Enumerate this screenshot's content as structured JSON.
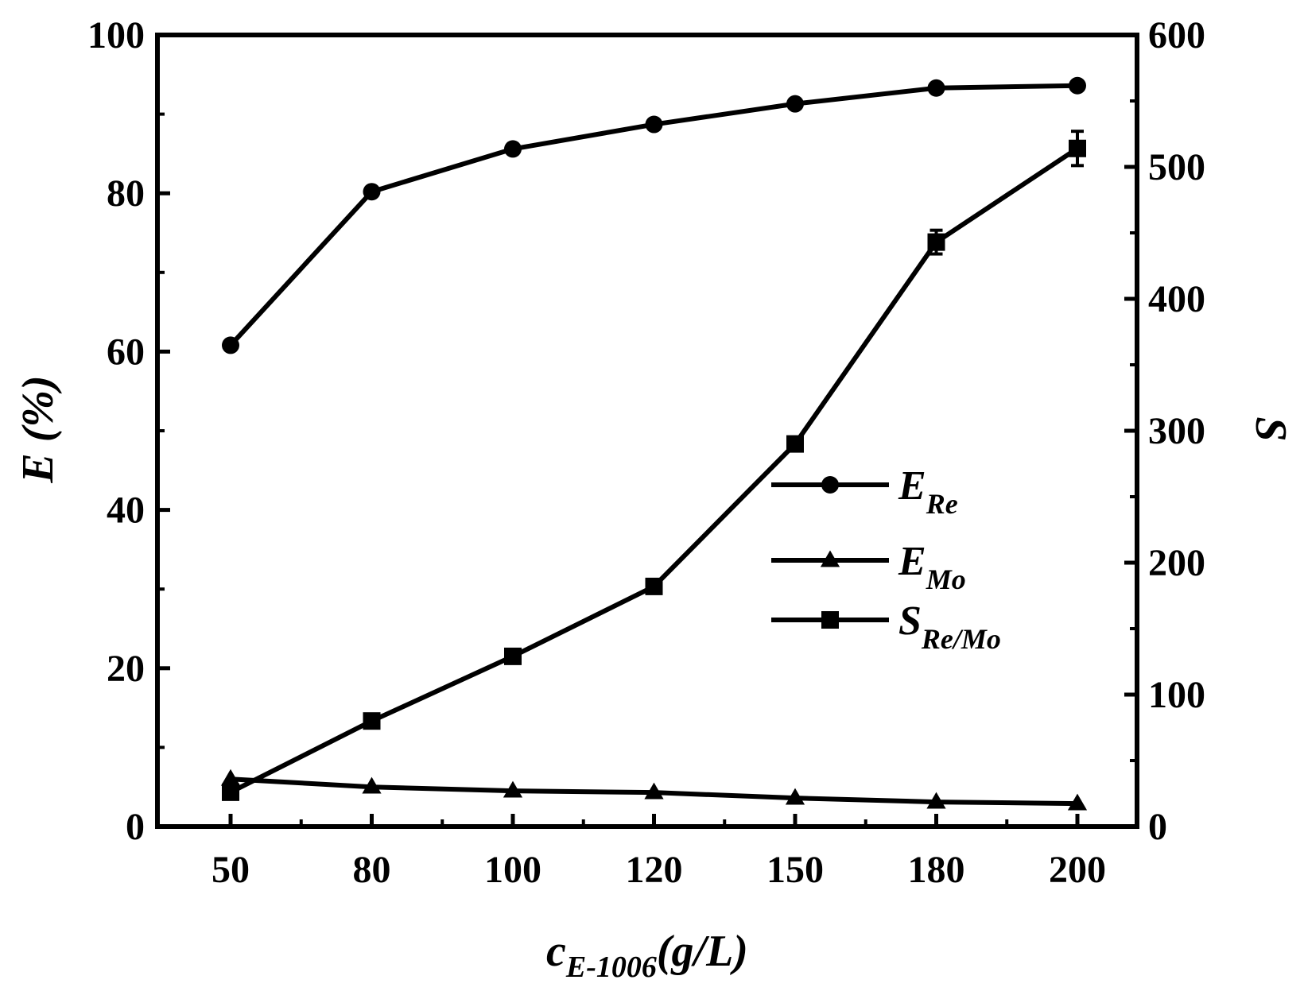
{
  "chart_data": {
    "type": "line",
    "categories": [
      "50",
      "80",
      "100",
      "120",
      "150",
      "180",
      "200"
    ],
    "xlabel": {
      "main": "c",
      "sub": "E-1006",
      "suffix": "(g/L)"
    },
    "ylabel_left": "E (%)",
    "ylabel_right": "S",
    "ylim_left": [
      0,
      100
    ],
    "ylim_right": [
      0,
      600
    ],
    "yticks_left": [
      "0",
      "20",
      "40",
      "60",
      "80",
      "100"
    ],
    "yticks_right": [
      "0",
      "100",
      "200",
      "300",
      "400",
      "500",
      "600"
    ],
    "grid": false,
    "legend_position": "center-right",
    "series": [
      {
        "key": "E_Re",
        "label_main": "E",
        "label_sub": "Re",
        "marker": "circle",
        "axis": "left",
        "values": [
          60.8,
          80.2,
          85.6,
          88.7,
          91.3,
          93.3,
          93.6
        ]
      },
      {
        "key": "E_Mo",
        "label_main": "E",
        "label_sub": "Mo",
        "marker": "triangle",
        "axis": "left",
        "values": [
          6.0,
          5.0,
          4.5,
          4.3,
          3.6,
          3.1,
          2.9
        ]
      },
      {
        "key": "S_ReMo",
        "label_main": "S",
        "label_sub": "Re/Mo",
        "marker": "square",
        "axis": "right",
        "values": [
          26,
          80,
          129,
          182,
          290,
          443,
          514
        ],
        "errors": [
          0,
          0,
          0,
          0,
          0,
          9,
          13
        ]
      }
    ],
    "colors": {
      "line": "#000000",
      "background": "#ffffff"
    }
  }
}
